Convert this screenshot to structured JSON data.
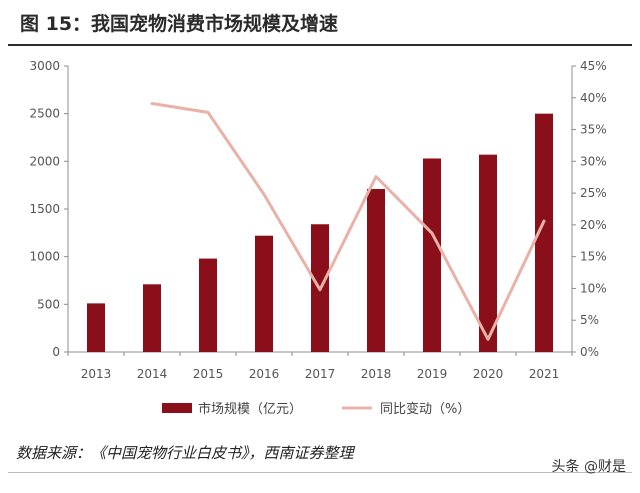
{
  "header": {
    "title": "图 15：我国宠物消费市场规模及增速"
  },
  "chart_data": {
    "type": "bar+line",
    "categories": [
      "2013",
      "2014",
      "2015",
      "2016",
      "2017",
      "2018",
      "2019",
      "2020",
      "2021"
    ],
    "series": [
      {
        "name": "市场规模（亿元）",
        "type": "bar",
        "axis": "left",
        "color": "#8b0f1a",
        "values": [
          510,
          710,
          980,
          1220,
          1340,
          1710,
          2030,
          2070,
          2500
        ]
      },
      {
        "name": "同比变动（%）",
        "type": "line",
        "axis": "right",
        "color": "#e8b2a8",
        "values": [
          null,
          39.1,
          37.7,
          24.8,
          9.8,
          27.6,
          18.7,
          2.0,
          20.6
        ]
      }
    ],
    "y_left": {
      "ylim": [
        0,
        3000
      ],
      "ticks": [
        "0",
        "500",
        "1000",
        "1500",
        "2000",
        "2500",
        "3000"
      ]
    },
    "y_right": {
      "ylim": [
        0,
        45
      ],
      "ticks": [
        "0%",
        "5%",
        "10%",
        "15%",
        "20%",
        "25%",
        "30%",
        "35%",
        "40%",
        "45%"
      ]
    },
    "legend_position": "bottom",
    "grid": false
  },
  "footer": {
    "source": "数据来源：《中国宠物行业白皮书》，西南证券整理",
    "watermark": "头条 @财是"
  }
}
